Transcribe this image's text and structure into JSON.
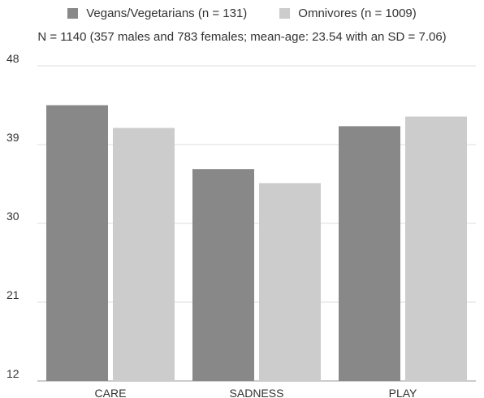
{
  "chart_data": {
    "type": "bar",
    "title": "",
    "subtitle": "N = 1140 (357 males and 783 females; mean-age: 23.54 with an SD = 7.06)",
    "xlabel": "",
    "ylabel": "",
    "categories": [
      "CARE",
      "SADNESS",
      "PLAY"
    ],
    "series": [
      {
        "name": "Vegans/Vegetarians (n = 131)",
        "values": [
          43.5,
          36.2,
          41.1
        ],
        "color": "#888888"
      },
      {
        "name": "Omnivores (n = 1009)",
        "values": [
          40.9,
          34.6,
          42.2
        ],
        "color": "#cccccc"
      }
    ],
    "ylim": [
      12,
      48
    ],
    "yticks": [
      "12",
      "21",
      "30",
      "39",
      "48"
    ],
    "grid": true,
    "legend": "top-center"
  }
}
